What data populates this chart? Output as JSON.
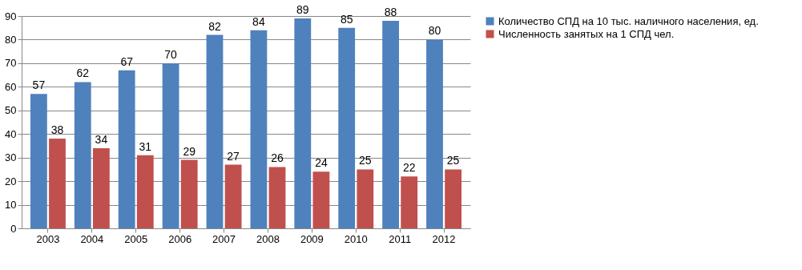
{
  "chart_data": {
    "type": "bar",
    "categories": [
      "2003",
      "2004",
      "2005",
      "2006",
      "2007",
      "2008",
      "2009",
      "2010",
      "2011",
      "2012"
    ],
    "series": [
      {
        "name": "Количество СПД на 10 тыс. наличного населения, ед.",
        "color": "#4f81bd",
        "values": [
          57,
          62,
          67,
          70,
          82,
          84,
          89,
          85,
          88,
          80
        ]
      },
      {
        "name": "Численность занятых на 1 СПД чел.",
        "color": "#c0504d",
        "values": [
          38,
          34,
          31,
          29,
          27,
          26,
          24,
          25,
          22,
          25
        ]
      }
    ],
    "ylim": [
      0,
      90
    ],
    "yticks": [
      0,
      10,
      20,
      30,
      40,
      50,
      60,
      70,
      80,
      90
    ],
    "grid": "y",
    "legend": "right",
    "data_labels": true
  }
}
